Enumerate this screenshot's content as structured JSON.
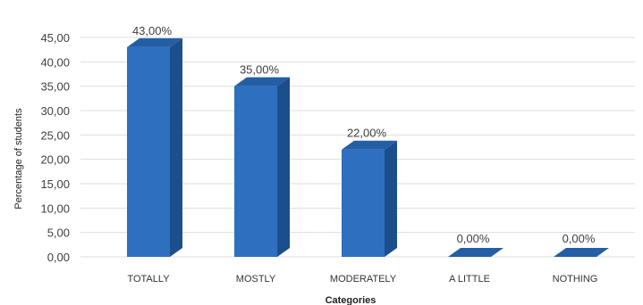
{
  "chart_data": {
    "type": "bar",
    "style": "3d-column",
    "title": "",
    "xlabel": "Categories",
    "ylabel": "Percentage of students",
    "categories": [
      "TOTALLY",
      "MOSTLY",
      "MODERATELY",
      "A LITTLE",
      "NOTHING"
    ],
    "values": [
      43,
      35,
      22,
      0,
      0
    ],
    "data_labels": [
      "43,00%",
      "35,00%",
      "22,00%",
      "0,00%",
      "0,00%"
    ],
    "ylim": [
      0,
      45
    ],
    "yticks": [
      "0,00",
      "5,00",
      "10,00",
      "15,00",
      "20,00",
      "25,00",
      "30,00",
      "35,00",
      "40,00",
      "45,00"
    ],
    "ytick_values": [
      0,
      5,
      10,
      15,
      20,
      25,
      30,
      35,
      40,
      45
    ],
    "grid": true,
    "legend": "none",
    "colors": {
      "bar_front": "#2e6fbf",
      "bar_side": "#1d4e8c",
      "bar_top": "#245ea5",
      "grid": "#dedede"
    }
  }
}
